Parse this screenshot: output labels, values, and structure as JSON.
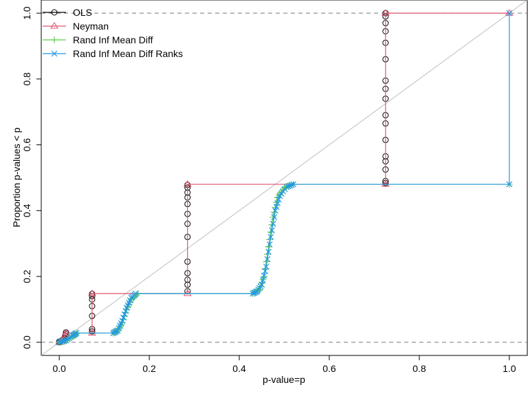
{
  "chart_data": {
    "type": "line",
    "title": "",
    "xlabel": "p-value=p",
    "ylabel": "Proportion p-values < p",
    "xlim": [
      -0.04,
      1.04
    ],
    "ylim": [
      -0.04,
      1.04
    ],
    "x_ticks": [
      0.0,
      0.2,
      0.4,
      0.6,
      0.8,
      1.0
    ],
    "y_ticks": [
      0.0,
      0.2,
      0.4,
      0.6,
      0.8,
      1.0
    ],
    "x_tick_labels": [
      "0.0",
      "0.2",
      "0.4",
      "0.6",
      "0.8",
      "1.0"
    ],
    "y_tick_labels": [
      "0.0",
      "0.2",
      "0.4",
      "0.6",
      "0.8",
      "1.0"
    ],
    "grid": false,
    "reference_lines": {
      "diagonal": {
        "from": [
          -0.04,
          -0.04
        ],
        "to": [
          1.04,
          1.04
        ],
        "color": "#bebebe"
      },
      "dashed_y": [
        0.0,
        1.0
      ]
    },
    "legend_position": "top-left",
    "series": [
      {
        "name": "OLS",
        "marker": "circle",
        "color": "#000000",
        "line": false,
        "points": [
          [
            0.0,
            0.0
          ],
          [
            0.0,
            0.002
          ],
          [
            0.005,
            0.005
          ],
          [
            0.008,
            0.008
          ],
          [
            0.012,
            0.012
          ],
          [
            0.013,
            0.02
          ],
          [
            0.015,
            0.025
          ],
          [
            0.015,
            0.03
          ],
          [
            0.073,
            0.033
          ],
          [
            0.073,
            0.04
          ],
          [
            0.073,
            0.08
          ],
          [
            0.073,
            0.11
          ],
          [
            0.073,
            0.13
          ],
          [
            0.073,
            0.14
          ],
          [
            0.073,
            0.147
          ],
          [
            0.285,
            0.155
          ],
          [
            0.285,
            0.175
          ],
          [
            0.285,
            0.19
          ],
          [
            0.285,
            0.21
          ],
          [
            0.285,
            0.245
          ],
          [
            0.285,
            0.32
          ],
          [
            0.285,
            0.36
          ],
          [
            0.285,
            0.39
          ],
          [
            0.285,
            0.42
          ],
          [
            0.285,
            0.44
          ],
          [
            0.285,
            0.455
          ],
          [
            0.285,
            0.47
          ],
          [
            0.285,
            0.478
          ],
          [
            0.725,
            0.484
          ],
          [
            0.725,
            0.49
          ],
          [
            0.725,
            0.525
          ],
          [
            0.725,
            0.55
          ],
          [
            0.725,
            0.565
          ],
          [
            0.725,
            0.615
          ],
          [
            0.725,
            0.665
          ],
          [
            0.725,
            0.69
          ],
          [
            0.725,
            0.74
          ],
          [
            0.725,
            0.77
          ],
          [
            0.725,
            0.795
          ],
          [
            0.725,
            0.86
          ],
          [
            0.725,
            0.91
          ],
          [
            0.725,
            0.945
          ],
          [
            0.725,
            0.97
          ],
          [
            0.725,
            0.99
          ],
          [
            0.725,
            1.0
          ]
        ]
      },
      {
        "name": "Neyman",
        "marker": "triangle",
        "color": "#df536b",
        "line": true,
        "points": [
          [
            0.0,
            0.0
          ],
          [
            0.005,
            0.005
          ],
          [
            0.01,
            0.015
          ],
          [
            0.013,
            0.022
          ],
          [
            0.015,
            0.028
          ],
          [
            0.073,
            0.028
          ],
          [
            0.073,
            0.148
          ],
          [
            0.285,
            0.148
          ],
          [
            0.285,
            0.48
          ],
          [
            0.725,
            0.48
          ],
          [
            0.725,
            1.0
          ],
          [
            1.0,
            1.0
          ]
        ]
      },
      {
        "name": "Rand Inf Mean Diff",
        "marker": "plus",
        "color": "#61d04f",
        "line": true,
        "points": [
          [
            0.0,
            0.0
          ],
          [
            0.015,
            0.005
          ],
          [
            0.03,
            0.018
          ],
          [
            0.04,
            0.028
          ],
          [
            0.12,
            0.028
          ],
          [
            0.13,
            0.035
          ],
          [
            0.14,
            0.06
          ],
          [
            0.15,
            0.1
          ],
          [
            0.16,
            0.13
          ],
          [
            0.175,
            0.148
          ],
          [
            0.43,
            0.148
          ],
          [
            0.445,
            0.16
          ],
          [
            0.455,
            0.2
          ],
          [
            0.465,
            0.29
          ],
          [
            0.475,
            0.38
          ],
          [
            0.485,
            0.44
          ],
          [
            0.5,
            0.47
          ],
          [
            0.52,
            0.48
          ],
          [
            1.0,
            0.48
          ]
        ]
      },
      {
        "name": "Rand Inf Mean Diff Ranks",
        "marker": "x",
        "color": "#2297e6",
        "line": true,
        "points": [
          [
            0.0,
            0.0
          ],
          [
            0.015,
            0.006
          ],
          [
            0.03,
            0.02
          ],
          [
            0.038,
            0.028
          ],
          [
            0.12,
            0.028
          ],
          [
            0.13,
            0.036
          ],
          [
            0.14,
            0.065
          ],
          [
            0.15,
            0.105
          ],
          [
            0.16,
            0.135
          ],
          [
            0.17,
            0.148
          ],
          [
            0.43,
            0.148
          ],
          [
            0.44,
            0.155
          ],
          [
            0.45,
            0.175
          ],
          [
            0.46,
            0.23
          ],
          [
            0.47,
            0.32
          ],
          [
            0.48,
            0.4
          ],
          [
            0.49,
            0.445
          ],
          [
            0.505,
            0.472
          ],
          [
            0.52,
            0.48
          ],
          [
            1.0,
            0.48
          ],
          [
            1.0,
            1.0
          ]
        ]
      }
    ]
  }
}
